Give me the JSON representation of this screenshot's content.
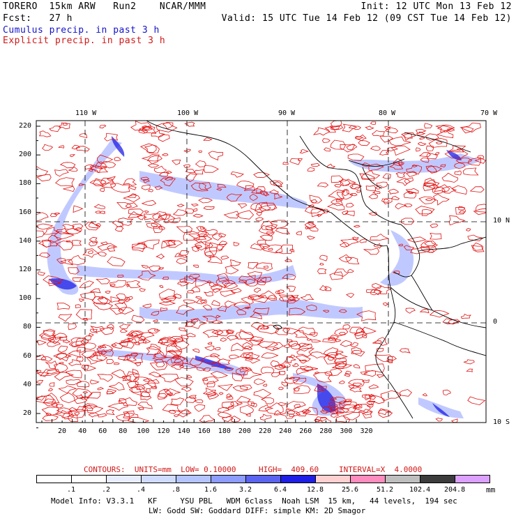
{
  "header": {
    "line1_left": "TORERO  15km ARW   Run2    NCAR/MMM",
    "line1_right": "Init: 12 UTC Mon 13 Feb 12",
    "line2_left": "Fcst:   27 h",
    "line2_right": "Valid: 15 UTC Tue 14 Feb 12 (09 CST Tue 14 Feb 12)",
    "line3": "Cumulus precip. in past 3 h",
    "line4": "Explicit precip. in past 3 h"
  },
  "map": {
    "lon_labels": [
      "110 W",
      "100 W",
      "90 W",
      "80 W",
      "70 W"
    ],
    "lat_labels": [
      "10 N",
      "0",
      "10 S"
    ],
    "y_ticks": [
      "220",
      "200",
      "180",
      "160",
      "140",
      "120",
      "100",
      "80",
      "60",
      "40",
      "20"
    ],
    "x_ticks": [
      "20",
      "40",
      "60",
      "80",
      "100",
      "120",
      "140",
      "160",
      "180",
      "200",
      "220",
      "240",
      "260",
      "280",
      "300",
      "320"
    ]
  },
  "contour_info": {
    "units": "CONTOURS:  UNITS=mm  LOW= 0.10000",
    "high": "HIGH=  409.60",
    "interval": "INTERVAL=X  4.0000"
  },
  "colorbar": {
    "labels": [
      ".1",
      ".2",
      ".4",
      ".8",
      "1.6",
      "3.2",
      "6.4",
      "12.8",
      "25.6",
      "51.2",
      "102.4",
      "204.8"
    ],
    "units": "mm",
    "colors": [
      "#ffffff",
      "#ffffff",
      "#e8eeff",
      "#d0dcff",
      "#b4c4ff",
      "#8c9cff",
      "#5a64f0",
      "#1e1ee6",
      "#ffd0d0",
      "#ff8cbe",
      "#bebebe",
      "#3c3c3c",
      "#dca0ff"
    ]
  },
  "footer": {
    "line1": "Model Info: V3.3.1   KF     YSU PBL   WDM 6class  Noah LSM  15 km,   44 levels,  194 sec",
    "line2": "LW: Godd SW: Goddard DIFF: simple KM: 2D Smagor"
  }
}
